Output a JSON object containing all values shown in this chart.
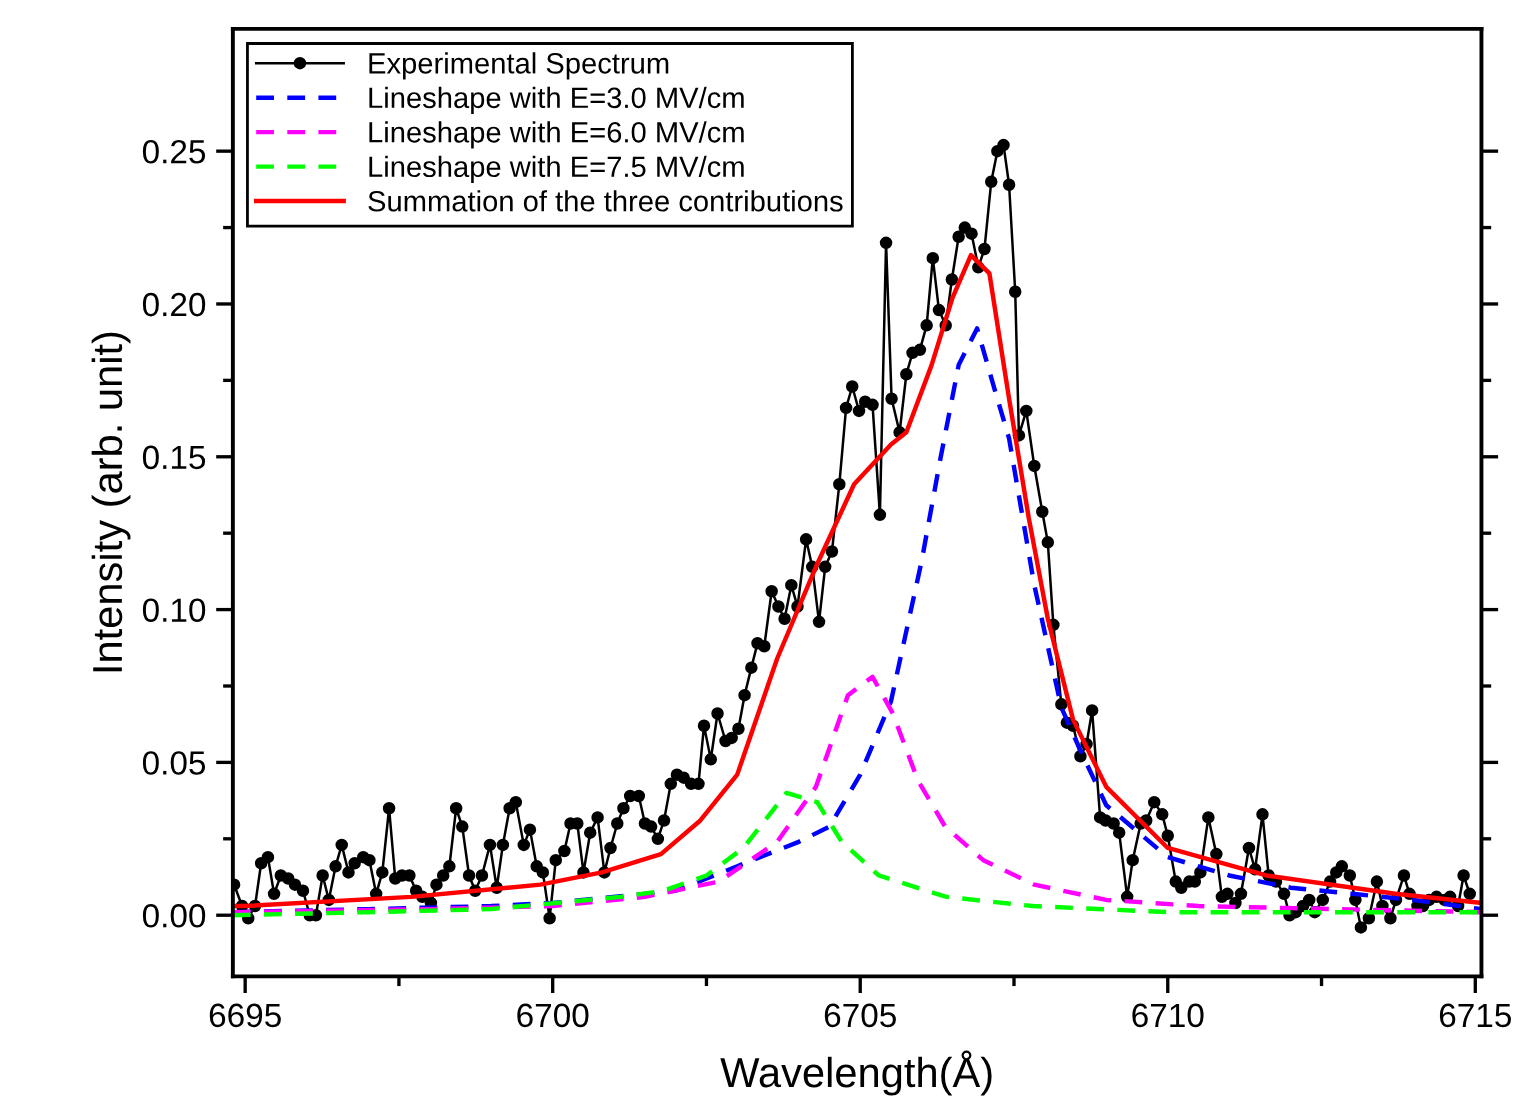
{
  "chart_data": {
    "type": "line",
    "xlabel": "Wavelength(Å)",
    "ylabel": "Intensity (arb. unit)",
    "xlim": [
      6694.8,
      6715.1
    ],
    "ylim": [
      -0.02,
      0.29
    ],
    "xticks": [
      6695,
      6700,
      6705,
      6710,
      6715
    ],
    "yticks": [
      {
        "value": 0,
        "label": "0.00"
      },
      {
        "value": 0.05,
        "label": "0.05"
      },
      {
        "value": 0.1,
        "label": "0.10"
      },
      {
        "value": 0.15,
        "label": "0.15"
      },
      {
        "value": 0.2,
        "label": "0.20"
      },
      {
        "value": 0.25,
        "label": "0.25"
      }
    ],
    "grid": false,
    "legend": "top left",
    "series": [
      {
        "name": "Experimental Spectrum",
        "color": "#000000",
        "marker": "circle",
        "line_style": "solid",
        "x": [
          6694.82,
          6694.95,
          6695.05,
          6695.16,
          6695.26,
          6695.37,
          6695.47,
          6695.58,
          6695.7,
          6695.81,
          6695.94,
          6696.05,
          6696.15,
          6696.26,
          6696.36,
          6696.47,
          6696.57,
          6696.68,
          6696.78,
          6696.92,
          6697.02,
          6697.13,
          6697.23,
          6697.34,
          6697.44,
          6697.55,
          6697.67,
          6697.78,
          6697.88,
          6698.02,
          6698.11,
          6698.22,
          6698.32,
          6698.43,
          6698.53,
          6698.64,
          6698.74,
          6698.85,
          6698.98,
          6699.09,
          6699.19,
          6699.3,
          6699.4,
          6699.53,
          6699.63,
          6699.74,
          6699.84,
          6699.95,
          6700.05,
          6700.19,
          6700.29,
          6700.4,
          6700.5,
          6700.61,
          6700.73,
          6700.84,
          6700.94,
          6701.05,
          6701.15,
          6701.26,
          6701.4,
          6701.5,
          6701.6,
          6701.71,
          6701.81,
          6701.92,
          6702.02,
          6702.13,
          6702.25,
          6702.37,
          6702.46,
          6702.57,
          6702.68,
          6702.81,
          6702.91,
          6703.02,
          6703.12,
          6703.23,
          6703.33,
          6703.44,
          6703.56,
          6703.67,
          6703.77,
          6703.88,
          6703.98,
          6704.12,
          6704.22,
          6704.33,
          6704.43,
          6704.54,
          6704.66,
          6704.77,
          6704.87,
          6704.98,
          6705.08,
          6705.2,
          6705.32,
          6705.42,
          6705.51,
          6705.64,
          6705.75,
          6705.85,
          6705.97,
          6706.08,
          6706.18,
          6706.28,
          6706.39,
          6706.49,
          6706.6,
          6706.7,
          6706.81,
          6706.92,
          6707.02,
          6707.13,
          6707.23,
          6707.33,
          6707.42,
          6707.52,
          6707.58,
          6707.7,
          6707.83,
          6707.96,
          6708.05,
          6708.14,
          6708.27,
          6708.36,
          6708.46,
          6708.58,
          6708.68,
          6708.77,
          6708.9,
          6708.99,
          6709.12,
          6709.21,
          6709.34,
          6709.43,
          6709.56,
          6709.65,
          6709.78,
          6709.91,
          6710.0,
          6710.13,
          6710.22,
          6710.35,
          6710.44,
          6710.53,
          6710.66,
          6710.79,
          6710.88,
          6710.97,
          6711.1,
          6711.19,
          6711.32,
          6711.42,
          6711.54,
          6711.64,
          6711.76,
          6711.89,
          6711.98,
          6712.08,
          6712.2,
          6712.3,
          6712.39,
          6712.52,
          6712.64,
          6712.74,
          6712.83,
          6712.96,
          6713.05,
          6713.14,
          6713.27,
          6713.4,
          6713.49,
          6713.62,
          6713.71,
          6713.84,
          6713.93,
          6714.06,
          6714.15,
          6714.25,
          6714.37,
          6714.5,
          6714.59,
          6714.72,
          6714.81,
          6714.91
        ],
        "values": [
          0.01,
          0.003,
          -0.001,
          0.003,
          0.017,
          0.019,
          0.007,
          0.013,
          0.012,
          0.01,
          0.008,
          0.0,
          0.0,
          0.013,
          0.005,
          0.016,
          0.023,
          0.014,
          0.017,
          0.019,
          0.018,
          0.007,
          0.014,
          0.035,
          0.012,
          0.013,
          0.013,
          0.008,
          0.006,
          0.004,
          0.01,
          0.013,
          0.016,
          0.035,
          0.029,
          0.013,
          0.008,
          0.013,
          0.023,
          0.009,
          0.023,
          0.035,
          0.037,
          0.023,
          0.028,
          0.016,
          0.014,
          -0.001,
          0.018,
          0.021,
          0.03,
          0.03,
          0.014,
          0.027,
          0.032,
          0.014,
          0.022,
          0.03,
          0.035,
          0.039,
          0.039,
          0.03,
          0.029,
          0.025,
          0.031,
          0.043,
          0.046,
          0.045,
          0.043,
          0.043,
          0.062,
          0.051,
          0.066,
          0.057,
          0.058,
          0.061,
          0.072,
          0.081,
          0.089,
          0.088,
          0.106,
          0.101,
          0.097,
          0.108,
          0.101,
          0.123,
          0.114,
          0.096,
          0.114,
          0.119,
          0.141,
          0.166,
          0.173,
          0.165,
          0.168,
          0.167,
          0.131,
          0.22,
          0.169,
          0.158,
          0.177,
          0.184,
          0.185,
          0.193,
          0.215,
          0.198,
          0.193,
          0.208,
          0.222,
          0.225,
          0.223,
          0.212,
          0.218,
          0.24,
          0.25,
          0.252,
          0.239,
          0.204,
          0.157,
          0.165,
          0.147,
          0.132,
          0.122,
          0.095,
          0.069,
          0.063,
          0.062,
          0.052,
          0.056,
          0.067,
          0.032,
          0.031,
          0.03,
          0.027,
          0.006,
          0.018,
          0.03,
          0.031,
          0.037,
          0.033,
          0.026,
          0.011,
          0.009,
          0.011,
          0.011,
          0.014,
          0.032,
          0.02,
          0.006,
          0.007,
          0.004,
          0.007,
          0.022,
          0.015,
          0.033,
          0.013,
          0.011,
          0.007,
          0.0,
          0.001,
          0.003,
          0.005,
          0.001,
          0.005,
          0.011,
          0.014,
          0.016,
          0.013,
          0.005,
          -0.004,
          -0.001,
          0.011,
          0.003,
          -0.001,
          0.005,
          0.013,
          0.007,
          0.003,
          0.003,
          0.005,
          0.006,
          0.005,
          0.006,
          0.003,
          0.013,
          0.007
        ]
      },
      {
        "name": "Lineshape with E=3.0 MV/cm",
        "color": "#0000ff",
        "marker": "none",
        "line_style": "dashed",
        "x": [
          6694.8,
          6697,
          6699,
          6700,
          6702,
          6703,
          6704,
          6704.5,
          6705,
          6705.5,
          6706,
          6706.3,
          6706.6,
          6706.9,
          6707.2,
          6707.42,
          6707.83,
          6708.27,
          6708.6,
          6709,
          6710,
          6711,
          6712,
          6713,
          6714,
          6715.1
        ],
        "values": [
          0.001,
          0.002,
          0.003,
          0.004,
          0.008,
          0.016,
          0.024,
          0.029,
          0.046,
          0.07,
          0.116,
          0.149,
          0.18,
          0.192,
          0.171,
          0.156,
          0.108,
          0.068,
          0.053,
          0.036,
          0.019,
          0.013,
          0.009,
          0.007,
          0.005,
          0.002
        ]
      },
      {
        "name": "Lineshape with E=6.0 MV/cm",
        "color": "#ff00ff",
        "marker": "none",
        "line_style": "dashed",
        "x": [
          6694.8,
          6698,
          6700,
          6701.5,
          6702.7,
          6703.65,
          6704.28,
          6704.8,
          6705.2,
          6705.53,
          6705.94,
          6706.38,
          6707.0,
          6707.83,
          6709,
          6710.5,
          6712.7,
          6715.1
        ],
        "values": [
          0.001,
          0.002,
          0.003,
          0.006,
          0.011,
          0.024,
          0.042,
          0.072,
          0.078,
          0.066,
          0.044,
          0.029,
          0.018,
          0.01,
          0.005,
          0.003,
          0.002,
          0.001
        ]
      },
      {
        "name": "Lineshape with E=7.5 MV/cm",
        "color": "#00ff00",
        "marker": "none",
        "line_style": "dashed",
        "x": [
          6694.8,
          6697,
          6699,
          6701.1,
          6701.8,
          6702.5,
          6703.1,
          6703.8,
          6704.3,
          6704.7,
          6705.3,
          6706.4,
          6707.8,
          6710,
          6715.1
        ],
        "values": [
          0.0,
          0.001,
          0.002,
          0.006,
          0.008,
          0.013,
          0.022,
          0.04,
          0.037,
          0.024,
          0.013,
          0.006,
          0.003,
          0.001,
          0.001
        ]
      },
      {
        "name": "Summation of the three contributions",
        "color": "#ff0000",
        "marker": "none",
        "line_style": "solid",
        "x": [
          6694.8,
          6695,
          6697.7,
          6699.8,
          6700.8,
          6701.76,
          6702.4,
          6703.0,
          6703.65,
          6704.28,
          6704.9,
          6705.5,
          6705.75,
          6706.16,
          6706.5,
          6706.8,
          6707.1,
          6707.42,
          6707.74,
          6708.05,
          6708.46,
          6709,
          6710,
          6711.6,
          6713.7,
          6715.1
        ],
        "values": [
          0.003,
          0.003,
          0.006,
          0.01,
          0.014,
          0.02,
          0.031,
          0.046,
          0.084,
          0.114,
          0.141,
          0.154,
          0.158,
          0.18,
          0.202,
          0.216,
          0.21,
          0.169,
          0.13,
          0.097,
          0.064,
          0.042,
          0.022,
          0.013,
          0.007,
          0.004
        ]
      }
    ]
  }
}
